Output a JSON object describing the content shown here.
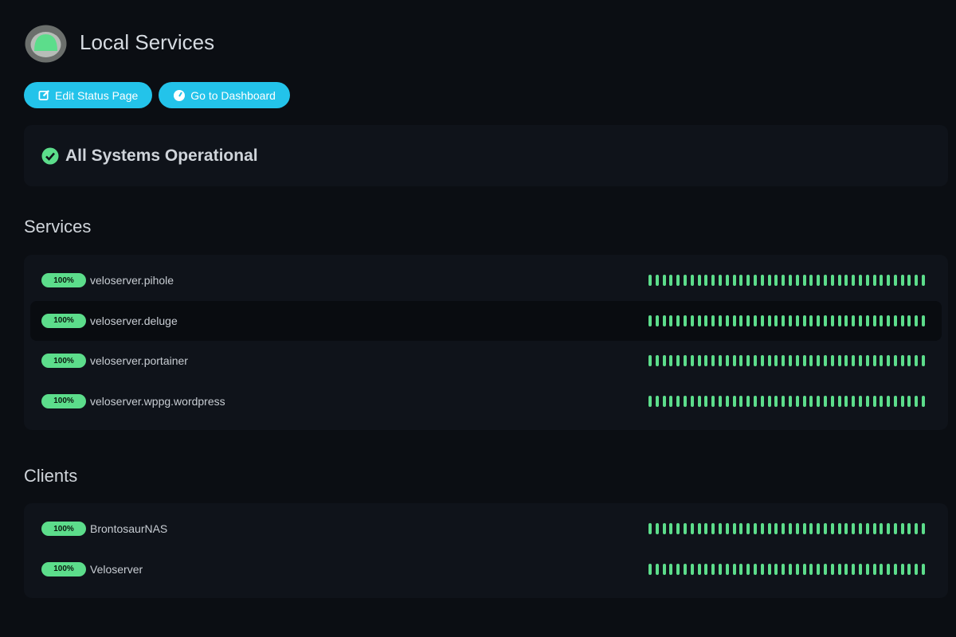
{
  "header": {
    "title": "Local Services"
  },
  "buttons": [
    "Edit Status Page",
    "Go to Dashboard"
  ],
  "overall_status": "All Systems Operational",
  "groups": [
    {
      "title": "Services",
      "monitors": [
        {
          "uptime": "100%",
          "name": "veloserver.pihole"
        },
        {
          "uptime": "100%",
          "name": "veloserver.deluge"
        },
        {
          "uptime": "100%",
          "name": "veloserver.portainer"
        },
        {
          "uptime": "100%",
          "name": "veloserver.wppg.wordpress"
        }
      ]
    },
    {
      "title": "Clients",
      "monitors": [
        {
          "uptime": "100%",
          "name": "BrontosaurNAS"
        },
        {
          "uptime": "100%",
          "name": "Veloserver"
        }
      ]
    }
  ]
}
